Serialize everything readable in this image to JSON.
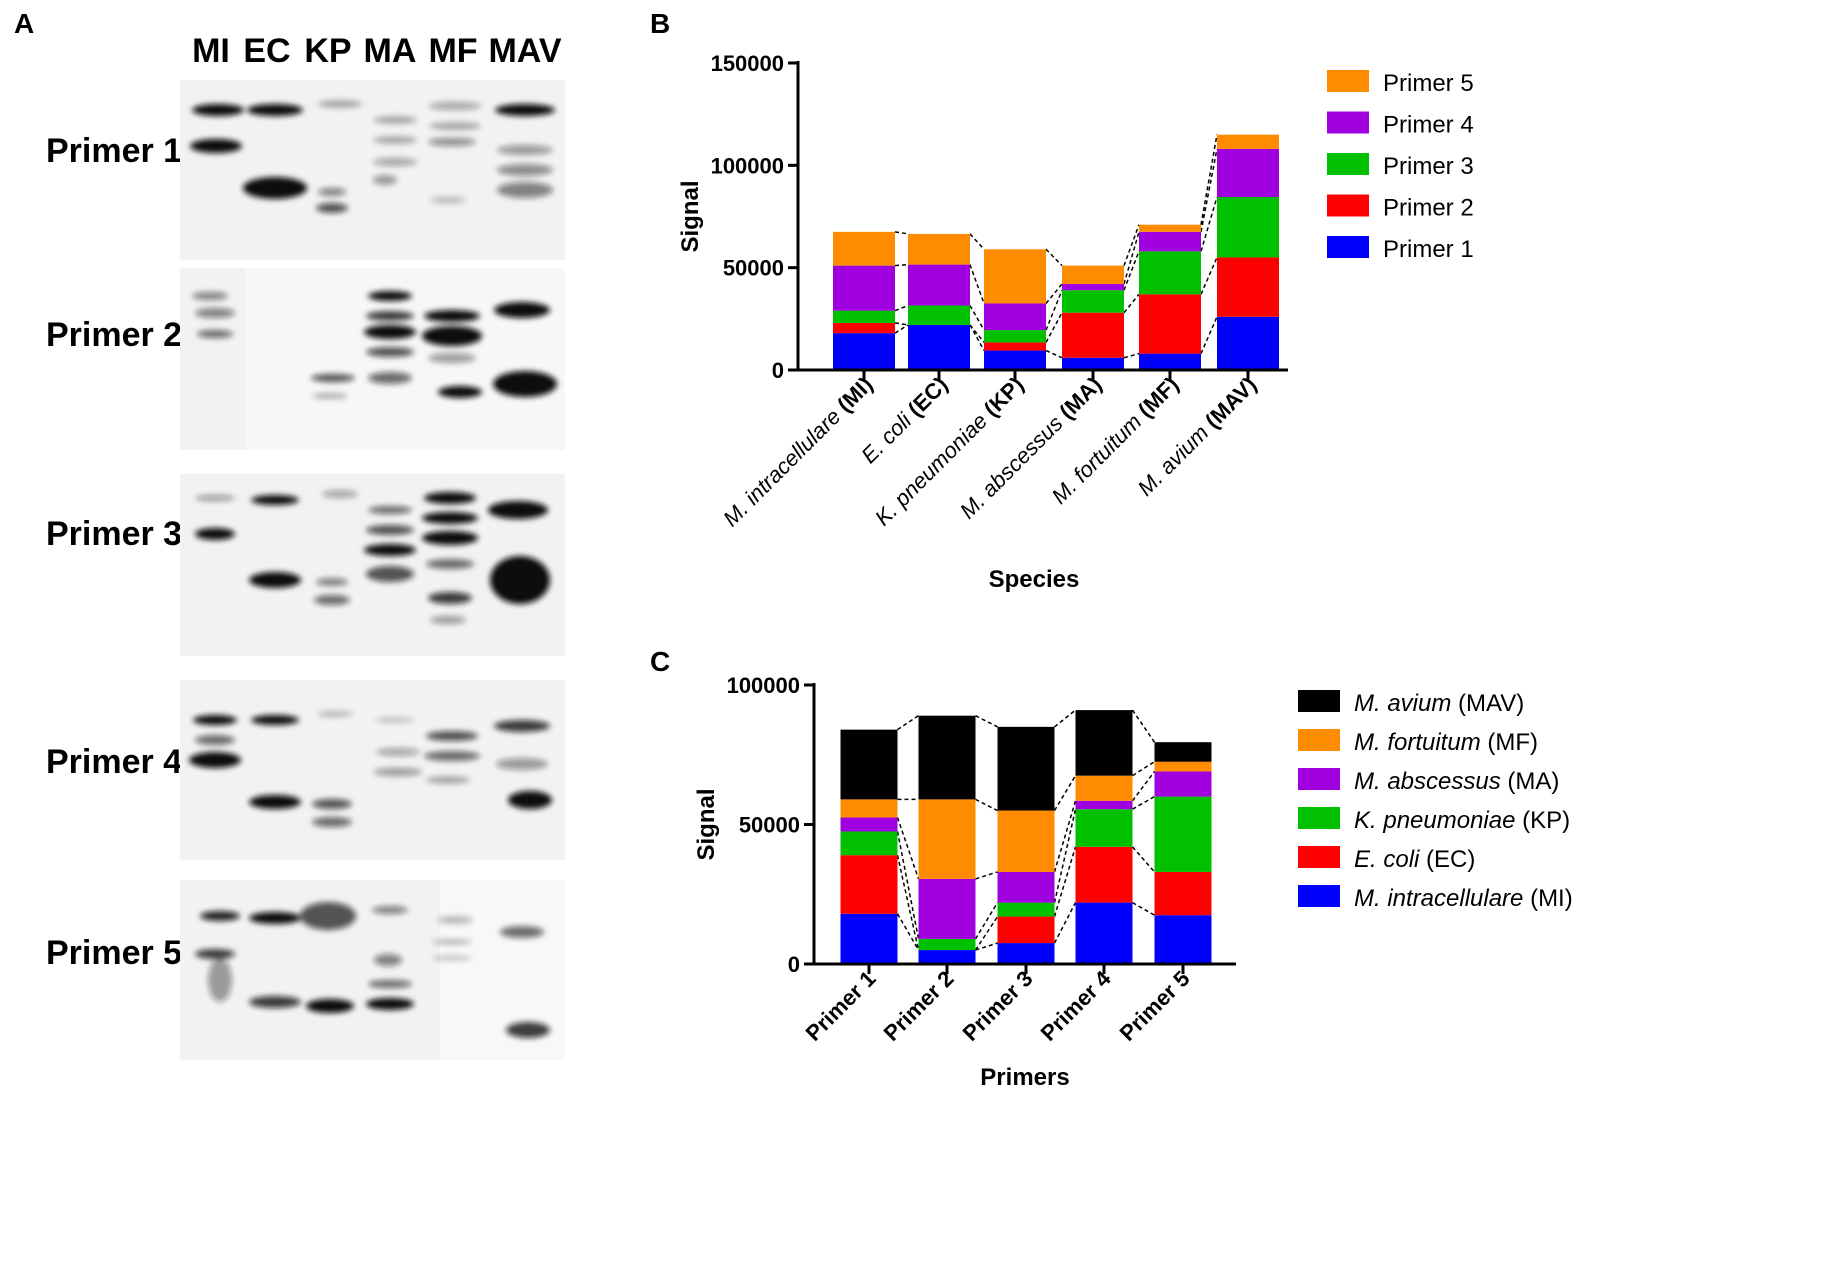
{
  "panels": {
    "a": "A",
    "b": "B",
    "c": "C"
  },
  "blot": {
    "lanes": [
      "MI",
      "EC",
      "KP",
      "MA",
      "MF",
      "MAV"
    ],
    "rows": [
      "Primer 1",
      "Primer 2",
      "Primer 3",
      "Primer 4",
      "Primer 5"
    ]
  },
  "colors": {
    "primer1": "#0000ff",
    "primer2": "#ff0000",
    "primer3": "#00c000",
    "primer4": "#a000e0",
    "primer5": "#ff8c00",
    "mav": "#000000"
  },
  "chart_data": [
    {
      "type": "bar",
      "stacked": true,
      "xlabel": "Species",
      "ylabel": "Signal",
      "ylim": [
        0,
        150000
      ],
      "yticks": [
        "0",
        "50000",
        "100000",
        "150000"
      ],
      "categories": [
        {
          "italic": "M. intracellulare",
          "abbr": "(MI)"
        },
        {
          "italic": "E. coli",
          "abbr": "(EC)"
        },
        {
          "italic": "K. pneumoniae",
          "abbr": "(KP)"
        },
        {
          "italic": "M. abscessus",
          "abbr": "(MA)"
        },
        {
          "italic": "M. fortuitum",
          "abbr": "(MF)"
        },
        {
          "italic": "M. avium",
          "abbr": "(MAV)"
        }
      ],
      "legend_position": "right",
      "series": [
        {
          "name": "Primer 1",
          "color": "#0000ff",
          "values": [
            18000,
            22000,
            9500,
            6000,
            8000,
            26000
          ]
        },
        {
          "name": "Primer 2",
          "color": "#ff0000",
          "values": [
            5000,
            0,
            4000,
            22000,
            29000,
            29000
          ]
        },
        {
          "name": "Primer 3",
          "color": "#00c000",
          "values": [
            6000,
            9500,
            6000,
            11000,
            21000,
            29500
          ]
        },
        {
          "name": "Primer 4",
          "color": "#a000e0",
          "values": [
            22000,
            20000,
            13000,
            3000,
            9500,
            23500
          ]
        },
        {
          "name": "Primer 5",
          "color": "#ff8c00",
          "values": [
            16500,
            15000,
            26500,
            9000,
            3500,
            7000
          ]
        }
      ]
    },
    {
      "type": "bar",
      "stacked": true,
      "xlabel": "Primers",
      "ylabel": "Signal",
      "ylim": [
        0,
        100000
      ],
      "yticks": [
        "0",
        "50000",
        "100000"
      ],
      "categories": [
        "Primer 1",
        "Primer 2",
        "Primer 3",
        "Primer 4",
        "Primer 5"
      ],
      "legend_position": "right",
      "series": [
        {
          "name": "M. intracellulare",
          "abbr": "(MI)",
          "color": "#0000ff",
          "values": [
            18000,
            5000,
            7500,
            22000,
            17500
          ]
        },
        {
          "name": "E. coli",
          "abbr": "(EC)",
          "color": "#ff0000",
          "values": [
            21000,
            0,
            9500,
            20000,
            15500
          ]
        },
        {
          "name": "K. pneumoniae",
          "abbr": "(KP)",
          "color": "#00c000",
          "values": [
            8500,
            4000,
            5000,
            13500,
            27000
          ]
        },
        {
          "name": "M. abscessus",
          "abbr": "(MA)",
          "color": "#a000e0",
          "values": [
            5000,
            21500,
            11000,
            3000,
            9000
          ]
        },
        {
          "name": "M. fortuitum",
          "abbr": "(MF)",
          "color": "#ff8c00",
          "values": [
            6500,
            28500,
            22000,
            9000,
            3500
          ]
        },
        {
          "name": "M. avium",
          "abbr": "(MAV)",
          "color": "#000000",
          "values": [
            25000,
            30000,
            30000,
            23500,
            7000
          ]
        }
      ]
    }
  ]
}
